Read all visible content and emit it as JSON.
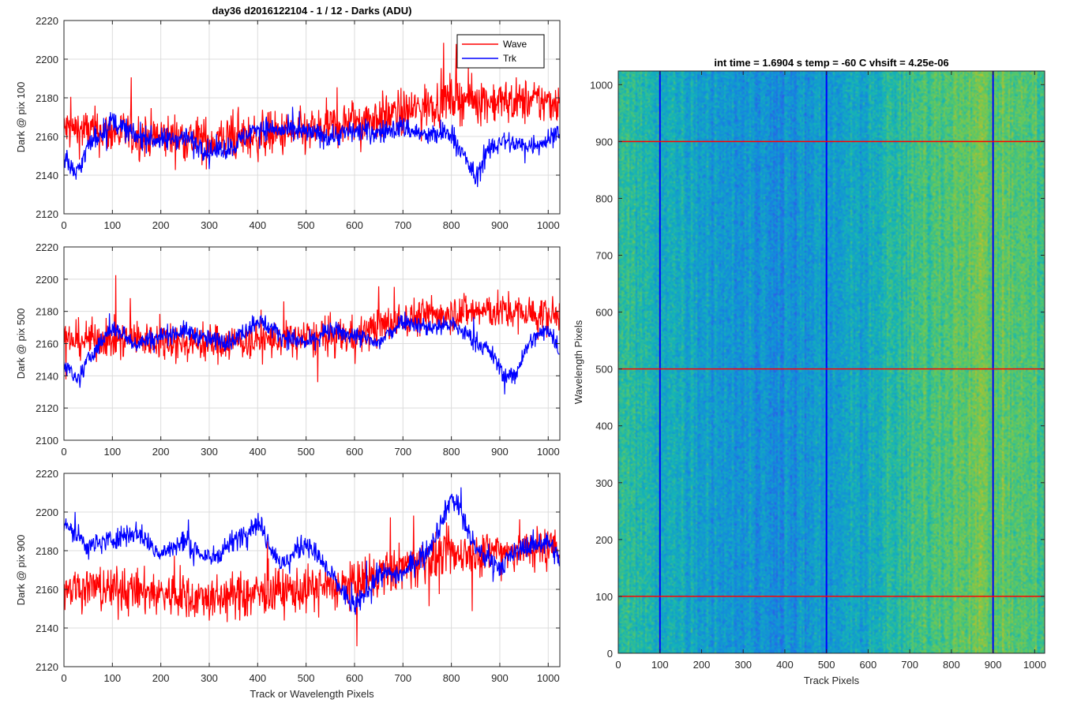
{
  "figure_title": "day36 d2016122104 - 1 / 12 - Darks (ADU)",
  "chart_data": [
    {
      "type": "line",
      "title": "day36 d2016122104 - 1 / 12 - Darks (ADU)",
      "xlabel": "",
      "ylabel": "Dark @ pix 100",
      "xlim": [
        0,
        1024
      ],
      "ylim": [
        2120,
        2220
      ],
      "xticks": [
        0,
        100,
        200,
        300,
        400,
        500,
        600,
        700,
        800,
        900,
        1000
      ],
      "yticks": [
        2120,
        2140,
        2160,
        2180,
        2200,
        2220
      ],
      "grid": true,
      "legend": {
        "placement": "top-right",
        "entries": [
          "Wave",
          "Trk"
        ]
      },
      "series": [
        {
          "name": "Wave",
          "color": "#ff0000",
          "noise": 10,
          "points": [
            [
              0,
              2164
            ],
            [
              100,
              2162
            ],
            [
              200,
              2160
            ],
            [
              300,
              2158
            ],
            [
              400,
              2160
            ],
            [
              500,
              2162
            ],
            [
              600,
              2168
            ],
            [
              700,
              2172
            ],
            [
              800,
              2180
            ],
            [
              900,
              2178
            ],
            [
              1024,
              2178
            ]
          ]
        },
        {
          "name": "Trk",
          "color": "#0000ff",
          "noise": 5,
          "points": [
            [
              0,
              2150
            ],
            [
              25,
              2140
            ],
            [
              50,
              2155
            ],
            [
              100,
              2168
            ],
            [
              150,
              2160
            ],
            [
              200,
              2158
            ],
            [
              250,
              2160
            ],
            [
              300,
              2152
            ],
            [
              350,
              2155
            ],
            [
              400,
              2165
            ],
            [
              450,
              2163
            ],
            [
              500,
              2162
            ],
            [
              550,
              2160
            ],
            [
              600,
              2163
            ],
            [
              650,
              2162
            ],
            [
              700,
              2165
            ],
            [
              750,
              2160
            ],
            [
              800,
              2162
            ],
            [
              830,
              2148
            ],
            [
              850,
              2138
            ],
            [
              870,
              2150
            ],
            [
              900,
              2158
            ],
            [
              950,
              2155
            ],
            [
              1000,
              2158
            ],
            [
              1024,
              2165
            ]
          ]
        }
      ]
    },
    {
      "type": "line",
      "title": "",
      "xlabel": "",
      "ylabel": "Dark @ pix 500",
      "xlim": [
        0,
        1024
      ],
      "ylim": [
        2100,
        2220
      ],
      "xticks": [
        0,
        100,
        200,
        300,
        400,
        500,
        600,
        700,
        800,
        900,
        1000
      ],
      "yticks": [
        2100,
        2120,
        2140,
        2160,
        2180,
        2200,
        2220
      ],
      "grid": true,
      "series": [
        {
          "name": "Wave",
          "color": "#ff0000",
          "noise": 10,
          "points": [
            [
              0,
              2162
            ],
            [
              100,
              2163
            ],
            [
              200,
              2162
            ],
            [
              300,
              2160
            ],
            [
              400,
              2162
            ],
            [
              500,
              2163
            ],
            [
              600,
              2165
            ],
            [
              700,
              2175
            ],
            [
              800,
              2180
            ],
            [
              900,
              2180
            ],
            [
              1024,
              2177
            ]
          ]
        },
        {
          "name": "Trk",
          "color": "#0000ff",
          "noise": 5,
          "points": [
            [
              0,
              2150
            ],
            [
              25,
              2135
            ],
            [
              50,
              2150
            ],
            [
              100,
              2170
            ],
            [
              150,
              2160
            ],
            [
              200,
              2165
            ],
            [
              250,
              2168
            ],
            [
              300,
              2162
            ],
            [
              350,
              2162
            ],
            [
              400,
              2175
            ],
            [
              450,
              2165
            ],
            [
              500,
              2160
            ],
            [
              550,
              2168
            ],
            [
              600,
              2165
            ],
            [
              650,
              2160
            ],
            [
              700,
              2175
            ],
            [
              750,
              2170
            ],
            [
              800,
              2172
            ],
            [
              850,
              2162
            ],
            [
              880,
              2155
            ],
            [
              910,
              2140
            ],
            [
              930,
              2140
            ],
            [
              960,
              2160
            ],
            [
              1000,
              2170
            ],
            [
              1024,
              2155
            ]
          ]
        }
      ]
    },
    {
      "type": "line",
      "title": "",
      "xlabel": "Track or Wavelength Pixels",
      "ylabel": "Dark @ pix 900",
      "xlim": [
        0,
        1024
      ],
      "ylim": [
        2120,
        2220
      ],
      "xticks": [
        0,
        100,
        200,
        300,
        400,
        500,
        600,
        700,
        800,
        900,
        1000
      ],
      "yticks": [
        2120,
        2140,
        2160,
        2180,
        2200,
        2220
      ],
      "grid": true,
      "series": [
        {
          "name": "Wave",
          "color": "#ff0000",
          "noise": 10,
          "points": [
            [
              0,
              2162
            ],
            [
              100,
              2160
            ],
            [
              200,
              2158
            ],
            [
              300,
              2155
            ],
            [
              400,
              2158
            ],
            [
              500,
              2160
            ],
            [
              600,
              2162
            ],
            [
              700,
              2172
            ],
            [
              800,
              2178
            ],
            [
              900,
              2180
            ],
            [
              1024,
              2182
            ]
          ]
        },
        {
          "name": "Trk",
          "color": "#0000ff",
          "noise": 5,
          "points": [
            [
              0,
              2195
            ],
            [
              50,
              2182
            ],
            [
              100,
              2186
            ],
            [
              150,
              2190
            ],
            [
              200,
              2178
            ],
            [
              250,
              2185
            ],
            [
              300,
              2175
            ],
            [
              350,
              2185
            ],
            [
              400,
              2195
            ],
            [
              450,
              2172
            ],
            [
              500,
              2185
            ],
            [
              550,
              2168
            ],
            [
              600,
              2150
            ],
            [
              650,
              2168
            ],
            [
              700,
              2168
            ],
            [
              750,
              2180
            ],
            [
              780,
              2195
            ],
            [
              800,
              2208
            ],
            [
              820,
              2200
            ],
            [
              850,
              2180
            ],
            [
              900,
              2172
            ],
            [
              950,
              2182
            ],
            [
              1000,
              2185
            ],
            [
              1024,
              2175
            ]
          ]
        }
      ]
    },
    {
      "type": "heatmap",
      "title": "int time = 1.6904 s    temp = -60 C    vhsift = 4.25e-06",
      "xlabel": "Track Pixels",
      "ylabel": "Wavelength Pixels",
      "xlim": [
        0,
        1024
      ],
      "ylim": [
        0,
        1024
      ],
      "xticks": [
        0,
        100,
        200,
        300,
        400,
        500,
        600,
        700,
        800,
        900,
        1000
      ],
      "yticks": [
        0,
        100,
        200,
        300,
        400,
        500,
        600,
        700,
        800,
        900,
        1000
      ],
      "colormap": "parula",
      "column_profile": [
        [
          0,
          0.5
        ],
        [
          80,
          0.45
        ],
        [
          150,
          0.42
        ],
        [
          250,
          0.36
        ],
        [
          350,
          0.33
        ],
        [
          450,
          0.34
        ],
        [
          550,
          0.38
        ],
        [
          650,
          0.46
        ],
        [
          750,
          0.56
        ],
        [
          850,
          0.63
        ],
        [
          950,
          0.58
        ],
        [
          1024,
          0.55
        ]
      ],
      "vertical_lines": {
        "color": "#0000ff",
        "x": [
          100,
          500,
          900
        ]
      },
      "horizontal_lines": {
        "color": "#ff0000",
        "y": [
          100,
          500,
          900
        ]
      }
    }
  ]
}
